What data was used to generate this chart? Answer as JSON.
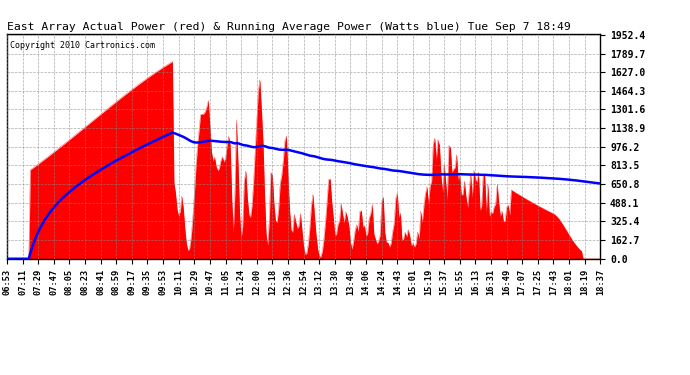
{
  "title": "East Array Actual Power (red) & Running Average Power (Watts blue) Tue Sep 7 18:49",
  "copyright": "Copyright 2010 Cartronics.com",
  "background_color": "#ffffff",
  "plot_bg_color": "#ffffff",
  "grid_color": "#888888",
  "ytick_labels": [
    "0.0",
    "162.7",
    "325.4",
    "488.1",
    "650.8",
    "813.5",
    "976.2",
    "1138.9",
    "1301.6",
    "1464.3",
    "1627.0",
    "1789.7",
    "1952.4"
  ],
  "ymax": 1952.4,
  "ymin": 0.0,
  "red_color": "#ff0000",
  "blue_color": "#0000ff",
  "tick_labels": [
    "06:53",
    "07:11",
    "07:29",
    "07:47",
    "08:05",
    "08:23",
    "08:41",
    "08:59",
    "09:17",
    "09:35",
    "09:53",
    "10:11",
    "10:29",
    "10:47",
    "11:05",
    "11:24",
    "12:00",
    "12:18",
    "12:36",
    "12:54",
    "13:12",
    "13:30",
    "13:48",
    "14:06",
    "14:24",
    "14:43",
    "15:01",
    "15:19",
    "15:37",
    "15:55",
    "16:13",
    "16:31",
    "16:49",
    "17:07",
    "17:25",
    "17:43",
    "18:01",
    "18:19",
    "18:37"
  ]
}
